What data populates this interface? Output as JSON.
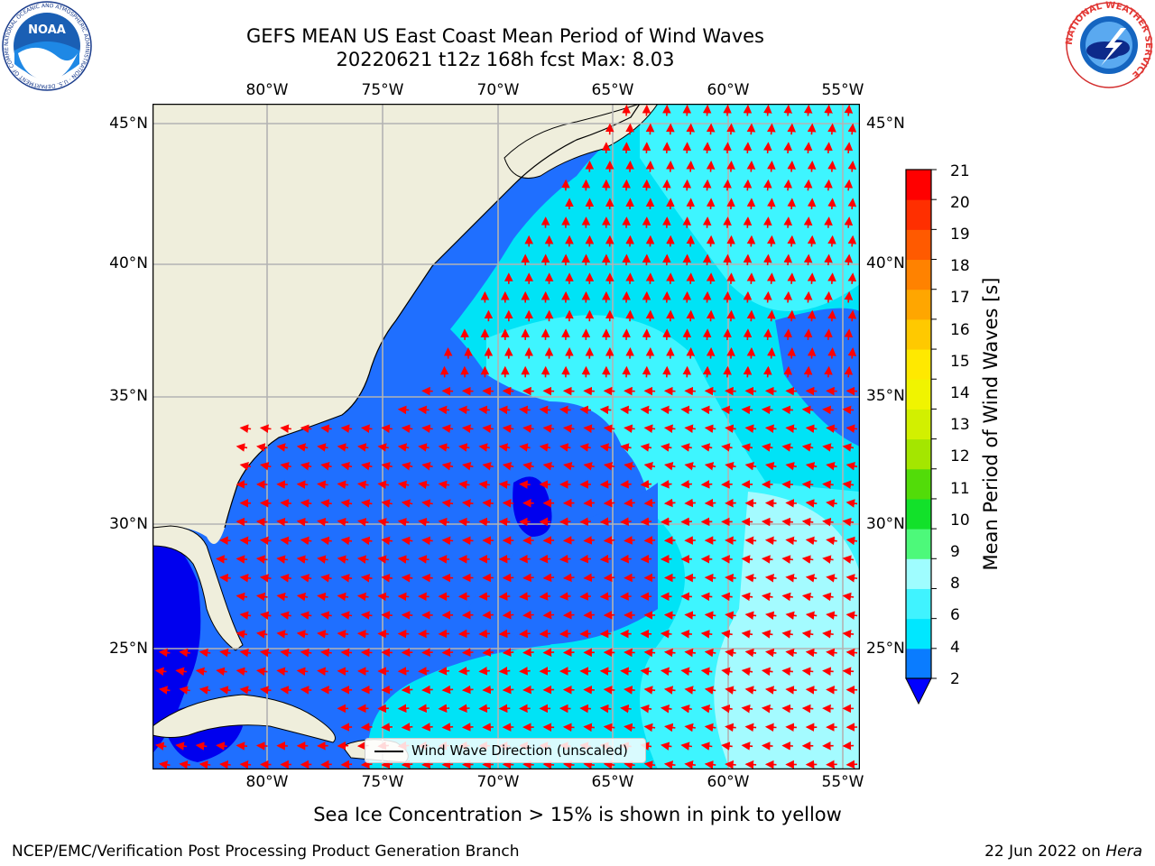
{
  "title": {
    "line1": "GEFS MEAN US East Coast Mean Period of Wind Waves",
    "line2": "20220621 t12z 168h fcst   Max: 8.03"
  },
  "map": {
    "lon_labels": [
      "80°W",
      "75°W",
      "70°W",
      "65°W",
      "60°W",
      "55°W"
    ],
    "lat_labels": [
      "45°N",
      "40°N",
      "35°N",
      "30°N",
      "25°N"
    ],
    "legend_label": "Wind Wave Direction (unscaled)",
    "colors": {
      "land": "#efeedc",
      "sea_2_4": "#1f6fff",
      "sea_4_6": "#00e3f6",
      "sea_6_8": "#3ef5ff",
      "sea_8_9": "#a4fbff",
      "sea_0_2": "#0000ee",
      "arrow": "#ff0000",
      "grid": "#b3b3b3"
    }
  },
  "colorbar": {
    "label": "Mean Period of Wind Waves [s]",
    "ticks": [
      "21",
      "20",
      "19",
      "18",
      "17",
      "16",
      "15",
      "14",
      "13",
      "12",
      "11",
      "10",
      "9",
      "8",
      "6",
      "4",
      "2"
    ],
    "colors_bottom_to_top": [
      "#0a7cff",
      "#00e7ff",
      "#40f3ff",
      "#9ffdff",
      "#4df97a",
      "#12e12a",
      "#52dc09",
      "#a4e600",
      "#d2f000",
      "#f0f400",
      "#ffe900",
      "#ffc900",
      "#ffa600",
      "#ff8200",
      "#ff5a00",
      "#ff2f00",
      "#ff0000"
    ],
    "underflow_color": "#0000ff"
  },
  "note": "Sea Ice Concentration > 15% is shown in pink to yellow",
  "footer": {
    "left": "NCEP/EMC/Verification Post Processing Product Generation Branch",
    "date": "22 Jun 2022 on ",
    "machine": "Hera"
  },
  "logos": {
    "noaa_text": "NOAA",
    "noaa_ring": "NATIONAL OCEANIC AND ATMOSPHERIC ADMINISTRATION · U.S. DEPARTMENT OF COMMERCE",
    "nws_ring": "NATIONAL WEATHER SERVICE"
  }
}
